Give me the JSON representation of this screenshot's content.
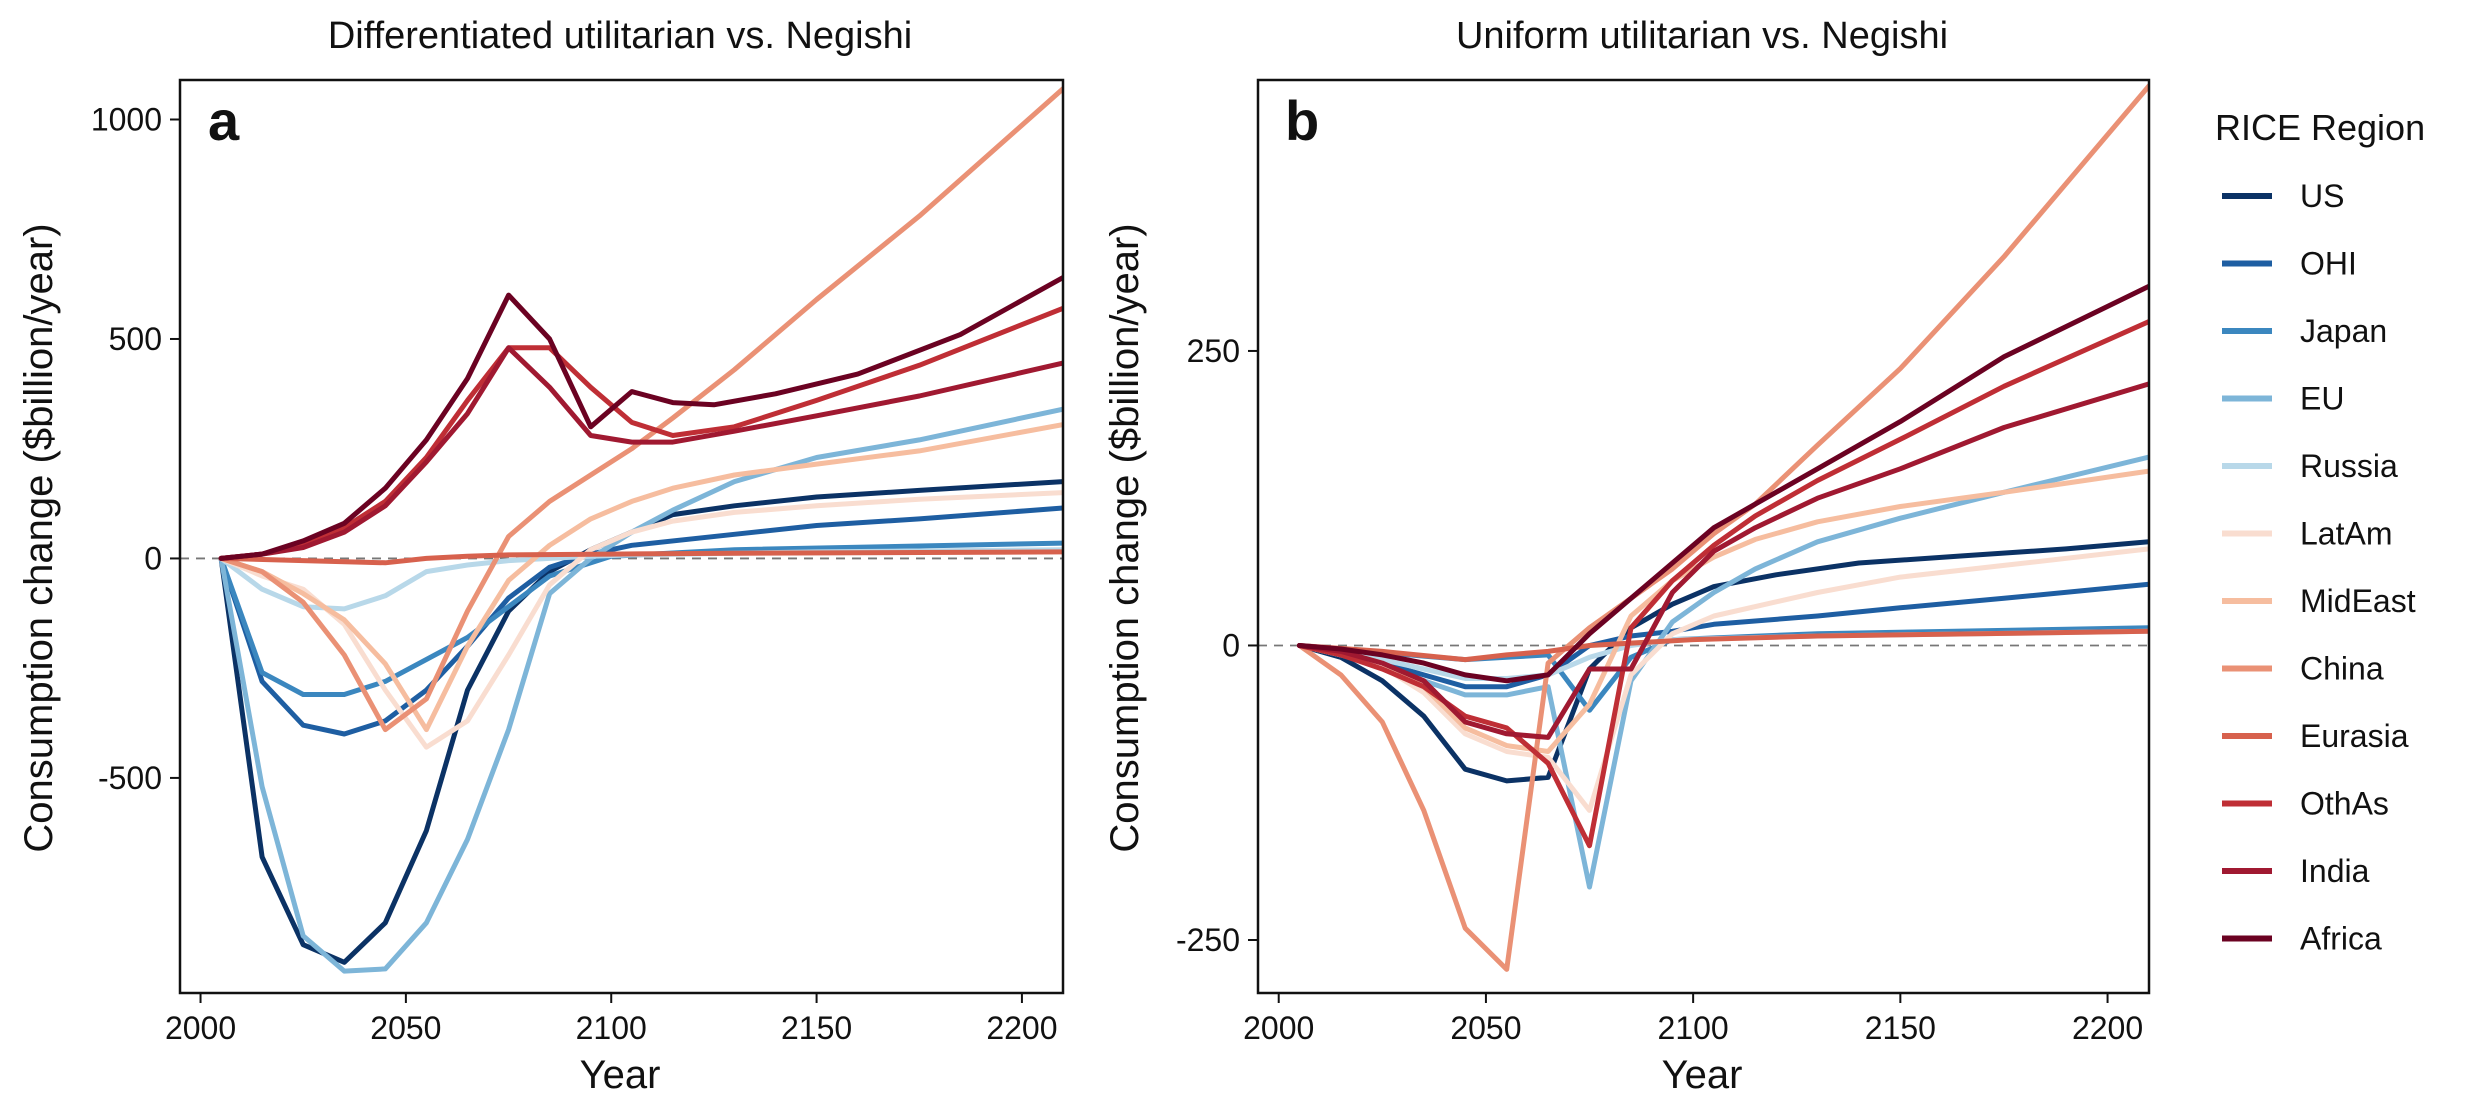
{
  "legend": {
    "title": "RICE Region",
    "entries": [
      "US",
      "OHI",
      "Japan",
      "EU",
      "Russia",
      "LatAm",
      "MidEast",
      "China",
      "Eurasia",
      "OthAs",
      "India",
      "Africa"
    ]
  },
  "colors": {
    "US": "#0b3265",
    "OHI": "#1e5ea2",
    "Japan": "#3b87bf",
    "EU": "#7db5d8",
    "Russia": "#b8d8e9",
    "LatAm": "#f9ddd0",
    "MidEast": "#f6bd9f",
    "China": "#ea9175",
    "Eurasia": "#d7614d",
    "OthAs": "#bf2e35",
    "India": "#a01931",
    "Africa": "#6b0222"
  },
  "chart_data": [
    {
      "type": "line",
      "panel": "a",
      "title": "Differentiated utilitarian vs. Negishi",
      "xlabel": "Year",
      "ylabel": "Consumption change ($billion/year)",
      "xlim": [
        1995,
        2210
      ],
      "ylim": [
        -990,
        1090
      ],
      "xticks": [
        2000,
        2050,
        2100,
        2150,
        2200
      ],
      "yticks": [
        -500,
        0,
        500,
        1000
      ],
      "ytick_labels": [
        "-500",
        "0",
        "500",
        "1000"
      ],
      "reference_line": 0,
      "series": [
        {
          "name": "US",
          "x": [
            2005,
            2015,
            2025,
            2035,
            2045,
            2055,
            2065,
            2075,
            2085,
            2095,
            2105,
            2115,
            2130,
            2150,
            2175,
            2210
          ],
          "y": [
            0,
            -680,
            -880,
            -920,
            -830,
            -620,
            -300,
            -120,
            -30,
            20,
            60,
            100,
            120,
            140,
            155,
            175
          ]
        },
        {
          "name": "OHI",
          "x": [
            2005,
            2015,
            2025,
            2035,
            2045,
            2055,
            2065,
            2075,
            2085,
            2095,
            2105,
            2130,
            2150,
            2175,
            2210
          ],
          "y": [
            0,
            -280,
            -380,
            -400,
            -370,
            -300,
            -200,
            -90,
            -20,
            10,
            30,
            55,
            75,
            90,
            115
          ]
        },
        {
          "name": "Japan",
          "x": [
            2005,
            2015,
            2025,
            2035,
            2045,
            2065,
            2085,
            2100,
            2130,
            2210
          ],
          "y": [
            0,
            -260,
            -310,
            -310,
            -280,
            -180,
            -40,
            5,
            20,
            35
          ]
        },
        {
          "name": "EU",
          "x": [
            2005,
            2015,
            2025,
            2035,
            2045,
            2055,
            2065,
            2075,
            2085,
            2095,
            2105,
            2115,
            2130,
            2150,
            2175,
            2210
          ],
          "y": [
            0,
            -520,
            -860,
            -940,
            -935,
            -830,
            -640,
            -390,
            -80,
            0,
            60,
            110,
            175,
            230,
            270,
            340
          ]
        },
        {
          "name": "Russia",
          "x": [
            2005,
            2015,
            2025,
            2035,
            2045,
            2055,
            2065,
            2075,
            2085,
            2095,
            2105,
            2130,
            2150,
            2210
          ],
          "y": [
            0,
            -70,
            -110,
            -115,
            -85,
            -30,
            -15,
            -5,
            0,
            5,
            8,
            12,
            15,
            20
          ]
        },
        {
          "name": "LatAm",
          "x": [
            2005,
            2015,
            2025,
            2035,
            2045,
            2055,
            2065,
            2075,
            2085,
            2095,
            2105,
            2115,
            2130,
            2150,
            2175,
            2210
          ],
          "y": [
            0,
            -40,
            -70,
            -150,
            -300,
            -430,
            -370,
            -220,
            -60,
            20,
            60,
            85,
            105,
            120,
            135,
            150
          ]
        },
        {
          "name": "MidEast",
          "x": [
            2005,
            2015,
            2025,
            2035,
            2045,
            2055,
            2065,
            2075,
            2085,
            2095,
            2105,
            2115,
            2130,
            2150,
            2175,
            2210
          ],
          "y": [
            0,
            -30,
            -80,
            -140,
            -240,
            -390,
            -200,
            -50,
            30,
            90,
            130,
            160,
            190,
            215,
            245,
            305
          ]
        },
        {
          "name": "China",
          "x": [
            2005,
            2015,
            2025,
            2035,
            2045,
            2055,
            2065,
            2075,
            2085,
            2095,
            2105,
            2115,
            2130,
            2150,
            2175,
            2210
          ],
          "y": [
            0,
            -30,
            -100,
            -220,
            -390,
            -320,
            -120,
            50,
            130,
            190,
            250,
            320,
            430,
            590,
            780,
            1070
          ]
        },
        {
          "name": "Eurasia",
          "x": [
            2005,
            2025,
            2045,
            2055,
            2065,
            2075,
            2100,
            2130,
            2210
          ],
          "y": [
            0,
            -5,
            -10,
            0,
            5,
            8,
            10,
            12,
            15
          ]
        },
        {
          "name": "OthAs",
          "x": [
            2005,
            2015,
            2025,
            2035,
            2045,
            2055,
            2065,
            2075,
            2085,
            2095,
            2105,
            2115,
            2130,
            2150,
            2175,
            2210
          ],
          "y": [
            0,
            10,
            30,
            70,
            130,
            230,
            360,
            480,
            480,
            390,
            310,
            280,
            300,
            360,
            440,
            570
          ]
        },
        {
          "name": "India",
          "x": [
            2005,
            2015,
            2025,
            2035,
            2045,
            2055,
            2065,
            2075,
            2085,
            2095,
            2105,
            2115,
            2130,
            2150,
            2175,
            2210
          ],
          "y": [
            0,
            10,
            25,
            60,
            120,
            220,
            330,
            480,
            390,
            280,
            265,
            265,
            290,
            325,
            370,
            445
          ]
        },
        {
          "name": "Africa",
          "x": [
            2005,
            2015,
            2025,
            2035,
            2045,
            2055,
            2065,
            2075,
            2085,
            2095,
            2105,
            2115,
            2125,
            2140,
            2160,
            2185,
            2210
          ],
          "y": [
            0,
            10,
            40,
            80,
            160,
            270,
            410,
            600,
            500,
            300,
            380,
            355,
            350,
            375,
            420,
            510,
            640
          ]
        }
      ]
    },
    {
      "type": "line",
      "panel": "b",
      "title": "Uniform utilitarian vs. Negishi",
      "xlabel": "Year",
      "ylabel": "Consumption change ($billion/year)",
      "xlim": [
        1995,
        2210
      ],
      "ylim": [
        -295,
        480
      ],
      "xticks": [
        2000,
        2050,
        2100,
        2150,
        2200
      ],
      "yticks": [
        -250,
        0,
        250
      ],
      "ytick_labels": [
        "-250",
        "0",
        "250"
      ],
      "reference_line": 0,
      "series": [
        {
          "name": "US",
          "x": [
            2005,
            2015,
            2025,
            2035,
            2045,
            2055,
            2065,
            2075,
            2085,
            2095,
            2105,
            2120,
            2140,
            2165,
            2190,
            2210
          ],
          "y": [
            0,
            -10,
            -30,
            -60,
            -105,
            -115,
            -112,
            -20,
            15,
            35,
            50,
            60,
            70,
            76,
            82,
            88
          ]
        },
        {
          "name": "OHI",
          "x": [
            2005,
            2015,
            2025,
            2035,
            2045,
            2055,
            2065,
            2075,
            2085,
            2095,
            2105,
            2130,
            2150,
            2175,
            2210
          ],
          "y": [
            0,
            -5,
            -15,
            -25,
            -35,
            -35,
            -25,
            0,
            8,
            12,
            18,
            25,
            32,
            40,
            52
          ]
        },
        {
          "name": "Japan",
          "x": [
            2005,
            2015,
            2025,
            2035,
            2045,
            2055,
            2065,
            2075,
            2085,
            2095,
            2130,
            2210
          ],
          "y": [
            0,
            -3,
            -6,
            -9,
            -12,
            -10,
            -8,
            -55,
            -10,
            5,
            10,
            15
          ]
        },
        {
          "name": "EU",
          "x": [
            2005,
            2015,
            2025,
            2035,
            2045,
            2055,
            2065,
            2075,
            2085,
            2095,
            2105,
            2115,
            2130,
            2150,
            2175,
            2210
          ],
          "y": [
            0,
            -8,
            -18,
            -30,
            -42,
            -42,
            -35,
            -205,
            -30,
            20,
            45,
            65,
            88,
            108,
            130,
            160
          ]
        },
        {
          "name": "Russia",
          "x": [
            2005,
            2015,
            2025,
            2035,
            2045,
            2055,
            2065,
            2075,
            2085,
            2095,
            2130,
            2210
          ],
          "y": [
            0,
            -5,
            -12,
            -20,
            -28,
            -28,
            -25,
            -10,
            0,
            5,
            8,
            12
          ]
        },
        {
          "name": "LatAm",
          "x": [
            2005,
            2015,
            2025,
            2035,
            2045,
            2055,
            2065,
            2075,
            2085,
            2095,
            2105,
            2130,
            2150,
            2175,
            2210
          ],
          "y": [
            0,
            -8,
            -18,
            -40,
            -75,
            -90,
            -95,
            -140,
            -25,
            10,
            25,
            45,
            58,
            68,
            82
          ]
        },
        {
          "name": "MidEast",
          "x": [
            2005,
            2015,
            2025,
            2035,
            2045,
            2055,
            2065,
            2075,
            2085,
            2095,
            2105,
            2115,
            2130,
            2150,
            2175,
            2210
          ],
          "y": [
            0,
            -5,
            -15,
            -35,
            -70,
            -85,
            -90,
            -50,
            25,
            55,
            75,
            90,
            105,
            118,
            130,
            148
          ]
        },
        {
          "name": "China",
          "x": [
            2005,
            2015,
            2025,
            2035,
            2045,
            2055,
            2065,
            2075,
            2085,
            2095,
            2105,
            2115,
            2130,
            2150,
            2175,
            2210
          ],
          "y": [
            0,
            -25,
            -65,
            -140,
            -240,
            -275,
            -15,
            15,
            40,
            65,
            95,
            120,
            170,
            235,
            330,
            475
          ]
        },
        {
          "name": "Eurasia",
          "x": [
            2005,
            2025,
            2045,
            2055,
            2065,
            2075,
            2100,
            2130,
            2210
          ],
          "y": [
            0,
            -5,
            -12,
            -8,
            -5,
            0,
            5,
            8,
            12
          ]
        },
        {
          "name": "OthAs",
          "x": [
            2005,
            2015,
            2025,
            2035,
            2045,
            2055,
            2065,
            2075,
            2085,
            2095,
            2105,
            2115,
            2130,
            2150,
            2175,
            2210
          ],
          "y": [
            0,
            -8,
            -20,
            -35,
            -60,
            -70,
            -100,
            -170,
            15,
            55,
            85,
            110,
            140,
            175,
            220,
            275
          ]
        },
        {
          "name": "India",
          "x": [
            2005,
            2015,
            2025,
            2035,
            2045,
            2055,
            2065,
            2075,
            2085,
            2095,
            2105,
            2115,
            2130,
            2150,
            2175,
            2210
          ],
          "y": [
            0,
            -5,
            -15,
            -30,
            -65,
            -75,
            -78,
            -20,
            -20,
            45,
            80,
            100,
            125,
            150,
            185,
            222
          ]
        },
        {
          "name": "Africa",
          "x": [
            2005,
            2015,
            2025,
            2035,
            2045,
            2055,
            2065,
            2075,
            2085,
            2095,
            2105,
            2115,
            2130,
            2150,
            2175,
            2210
          ],
          "y": [
            0,
            -3,
            -8,
            -15,
            -25,
            -30,
            -25,
            10,
            40,
            70,
            100,
            120,
            150,
            190,
            245,
            305
          ]
        }
      ]
    }
  ]
}
